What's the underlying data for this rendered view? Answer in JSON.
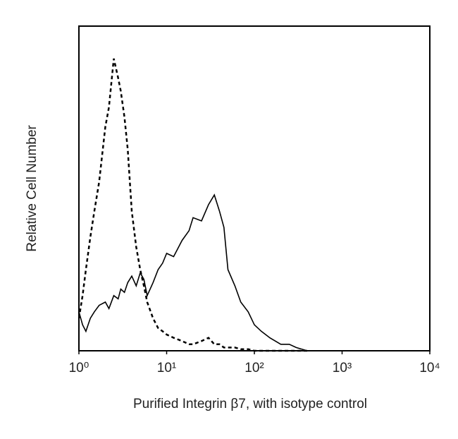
{
  "chart_data": {
    "type": "line",
    "x_label": "Purified Integrin β7, with isotype control",
    "y_label": "Relative Cell Number",
    "x": [
      1,
      1.1,
      1.2,
      1.35,
      1.5,
      1.7,
      2,
      2.2,
      2.5,
      2.8,
      3,
      3.3,
      3.6,
      4,
      4.5,
      5,
      5.5,
      6,
      7,
      8,
      9,
      10,
      12,
      15,
      18,
      20,
      25,
      30,
      35,
      40,
      45,
      50,
      60,
      70,
      85,
      100,
      120,
      150,
      200,
      250,
      300,
      400
    ],
    "series": [
      {
        "color": "#000000",
        "dashed": false,
        "values": [
          12,
          8,
          6,
          10,
          12,
          14,
          15,
          13,
          17,
          16,
          19,
          18,
          21,
          23,
          20,
          24,
          22,
          17,
          21,
          25,
          27,
          30,
          29,
          34,
          37,
          41,
          40,
          45,
          48,
          43,
          38,
          25,
          20,
          15,
          12,
          8,
          6,
          4,
          2,
          2,
          1,
          0
        ]
      },
      {
        "color": "#000000",
        "dashed": true,
        "values": [
          10,
          17,
          25,
          35,
          43,
          52,
          69,
          75,
          90,
          84,
          80,
          72,
          62,
          43,
          32,
          25,
          20,
          15,
          10,
          7,
          6,
          5,
          4,
          3,
          2,
          2,
          3,
          4,
          2,
          2,
          1,
          1,
          1,
          0.5,
          0.5,
          0,
          0,
          0,
          0,
          0,
          0,
          0
        ]
      }
    ],
    "xscale": "log",
    "xlim": [
      1,
      10000
    ],
    "xticks": [
      {
        "value": 1,
        "label": "10⁰"
      },
      {
        "value": 10,
        "label": "10¹"
      },
      {
        "value": 100,
        "label": "10²"
      },
      {
        "value": 1000,
        "label": "10³"
      },
      {
        "value": 10000,
        "label": "10⁴"
      }
    ],
    "ylim": [
      0,
      100
    ]
  }
}
